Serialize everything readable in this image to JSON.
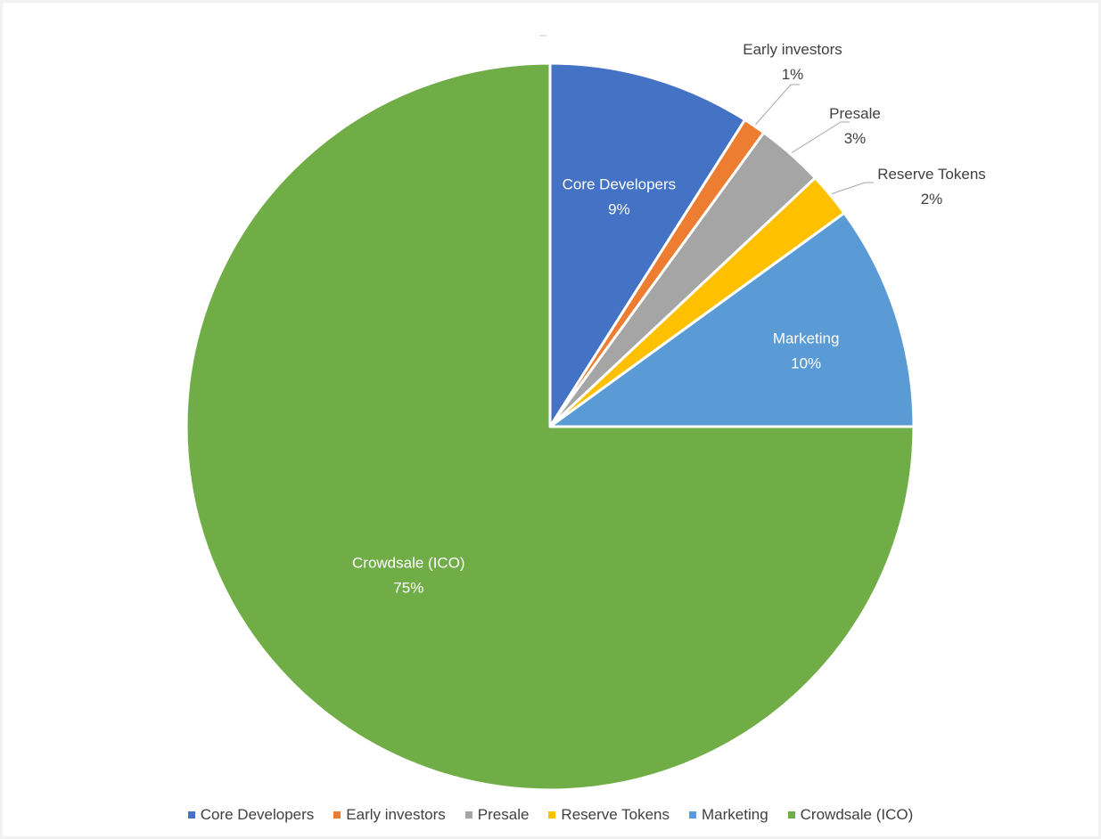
{
  "chart_data": {
    "type": "pie",
    "title": "",
    "slices": [
      {
        "name": "Core Developers",
        "value": 9,
        "label": "9%",
        "color": "#4472c4",
        "label_position": "inside"
      },
      {
        "name": "Early investors",
        "value": 1,
        "label": "1%",
        "color": "#ed7d31",
        "label_position": "outside"
      },
      {
        "name": "Presale",
        "value": 3,
        "label": "3%",
        "color": "#a5a5a5",
        "label_position": "outside"
      },
      {
        "name": "Reserve Tokens",
        "value": 2,
        "label": "2%",
        "color": "#ffc000",
        "label_position": "outside"
      },
      {
        "name": "Marketing",
        "value": 10,
        "label": "10%",
        "color": "#5b9bd5",
        "label_position": "inside"
      },
      {
        "name": "Crowdsale (ICO)",
        "value": 75,
        "label": "75%",
        "color": "#70ad47",
        "label_position": "inside"
      }
    ],
    "start_angle": "12 o'clock",
    "direction": "clockwise",
    "legend": {
      "position": "bottom",
      "entries": [
        "Core Developers",
        "Early investors",
        "Presale",
        "Reserve Tokens",
        "Marketing",
        "Crowdsale (ICO)"
      ]
    }
  }
}
